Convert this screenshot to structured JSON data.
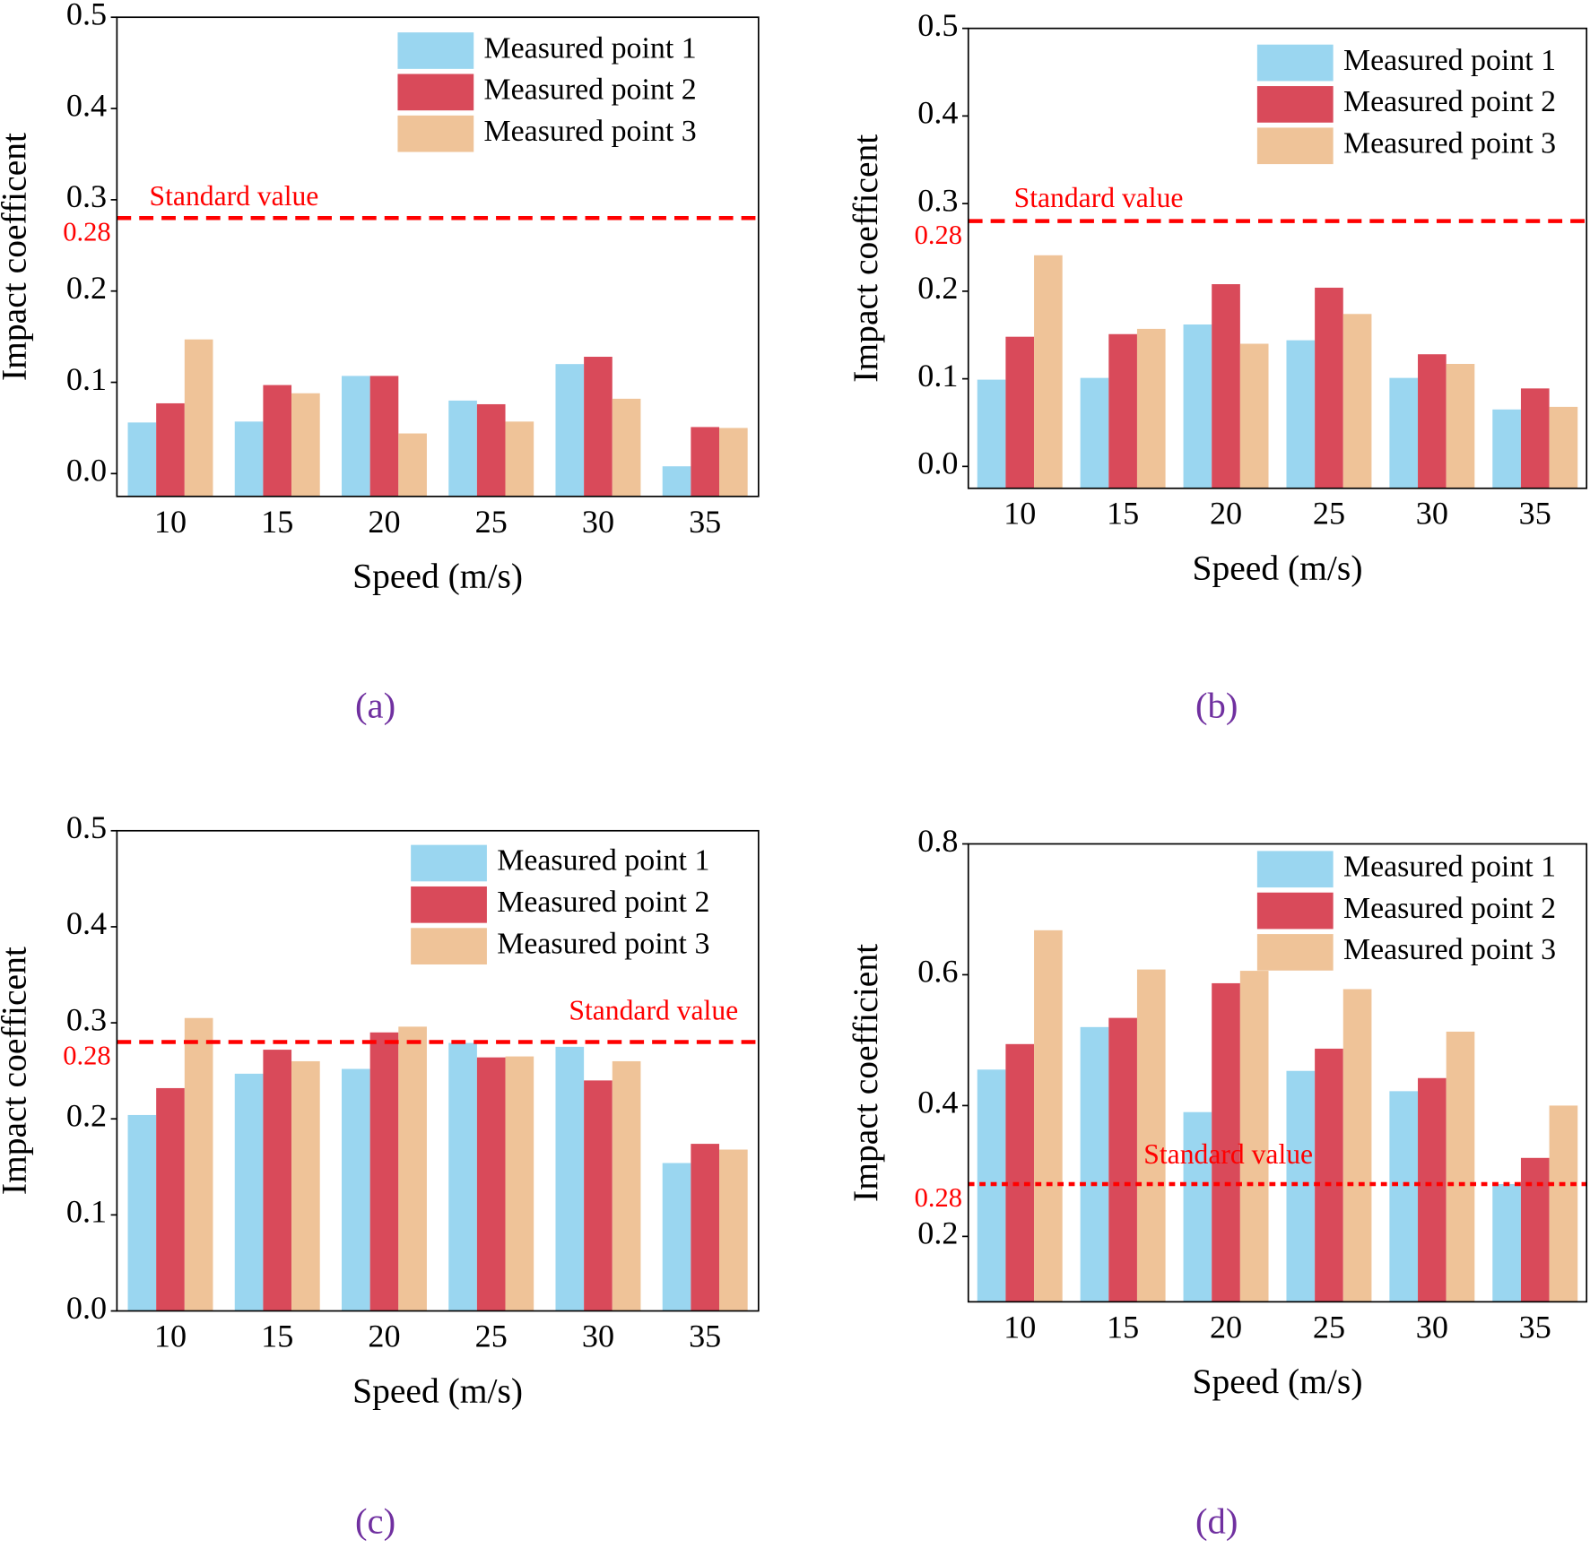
{
  "chart_data": [
    {
      "type": "bar",
      "caption": "(a)",
      "x_label": "Speed (m/s)",
      "y_label": "Impact coefficent",
      "categories": [
        "10",
        "15",
        "20",
        "25",
        "30",
        "35"
      ],
      "series": [
        {
          "name": "Measured point 1",
          "color": "#9ad6f0",
          "values": [
            0.056,
            0.057,
            0.107,
            0.08,
            0.12,
            0.008
          ]
        },
        {
          "name": "Measured point 2",
          "color": "#d94a5a",
          "values": [
            0.077,
            0.097,
            0.107,
            0.076,
            0.128,
            0.051
          ]
        },
        {
          "name": "Measured point 3",
          "color": "#efc398",
          "values": [
            0.147,
            0.088,
            0.044,
            0.057,
            0.082,
            0.05
          ]
        }
      ],
      "ylim": [
        -0.025,
        0.5
      ],
      "yticks": [
        {
          "value": 0,
          "label": "0.0"
        },
        0.1,
        0.2,
        0.3,
        0.4,
        0.5
      ],
      "reference_line": {
        "value": 0.28,
        "label": "Standard value",
        "color": "#ff0000",
        "line_style": "dashed"
      }
    },
    {
      "type": "bar",
      "caption": "(b)",
      "x_label": "Speed (m/s)",
      "y_label": "Impact coefficent",
      "categories": [
        "10",
        "15",
        "20",
        "25",
        "30",
        "35"
      ],
      "series": [
        {
          "name": "Measured point 1",
          "color": "#9ad6f0",
          "values": [
            0.099,
            0.101,
            0.162,
            0.144,
            0.101,
            0.065
          ]
        },
        {
          "name": "Measured point 2",
          "color": "#d94a5a",
          "values": [
            0.148,
            0.151,
            0.208,
            0.204,
            0.128,
            0.089
          ]
        },
        {
          "name": "Measured point 3",
          "color": "#efc398",
          "values": [
            0.241,
            0.157,
            0.14,
            0.174,
            0.117,
            0.068
          ]
        }
      ],
      "ylim": [
        -0.025,
        0.5
      ],
      "yticks": [
        {
          "value": 0,
          "label": "0.0"
        },
        0.1,
        0.2,
        0.3,
        0.4,
        0.5
      ],
      "reference_line": {
        "value": 0.28,
        "label": "Standard value",
        "color": "#ff0000",
        "line_style": "dashed"
      }
    },
    {
      "type": "bar",
      "caption": "(c)",
      "x_label": "Speed (m/s)",
      "y_label": "Impact coefficent",
      "categories": [
        "10",
        "15",
        "20",
        "25",
        "30",
        "35"
      ],
      "series": [
        {
          "name": "Measured point 1",
          "color": "#9ad6f0",
          "values": [
            0.204,
            0.247,
            0.252,
            0.279,
            0.275,
            0.154
          ]
        },
        {
          "name": "Measured point 2",
          "color": "#d94a5a",
          "values": [
            0.232,
            0.272,
            0.29,
            0.264,
            0.24,
            0.174
          ]
        },
        {
          "name": "Measured point 3",
          "color": "#efc398",
          "values": [
            0.305,
            0.26,
            0.296,
            0.265,
            0.26,
            0.168
          ]
        }
      ],
      "ylim": [
        0,
        0.5
      ],
      "yticks": [
        {
          "value": 0,
          "label": "0.0"
        },
        0.1,
        0.2,
        0.3,
        0.4,
        0.5
      ],
      "reference_line": {
        "value": 0.28,
        "label": "Standard value",
        "color": "#ff0000",
        "line_style": "dashed"
      }
    },
    {
      "type": "bar",
      "caption": "(d)",
      "x_label": "Speed (m/s)",
      "y_label": "Impact coefficient",
      "categories": [
        "10",
        "15",
        "20",
        "25",
        "30",
        "35"
      ],
      "series": [
        {
          "name": "Measured point 1",
          "color": "#9ad6f0",
          "values": [
            0.455,
            0.52,
            0.39,
            0.453,
            0.422,
            0.28
          ]
        },
        {
          "name": "Measured point 2",
          "color": "#d94a5a",
          "values": [
            0.494,
            0.534,
            0.587,
            0.487,
            0.442,
            0.32
          ]
        },
        {
          "name": "Measured point 3",
          "color": "#efc398",
          "values": [
            0.668,
            0.608,
            0.606,
            0.578,
            0.513,
            0.4
          ]
        }
      ],
      "ylim": [
        0.1,
        0.8
      ],
      "yticks": [
        0.2,
        0.4,
        0.6,
        0.8
      ],
      "reference_line": {
        "value": 0.28,
        "label": "Standard value",
        "color": "#ff0000",
        "line_style": "dotted"
      }
    }
  ]
}
